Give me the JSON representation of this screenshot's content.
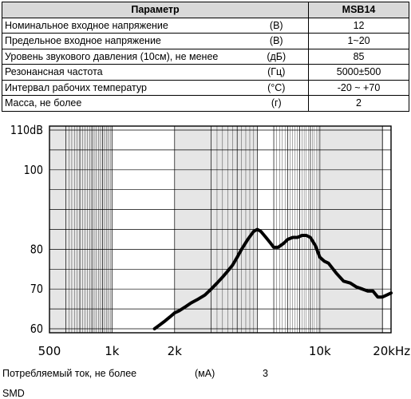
{
  "table": {
    "header_param": "Параметр",
    "header_model": "MSB14",
    "rows": [
      {
        "param": "Номинальное входное напряжение",
        "unit": "(В)",
        "value": "12"
      },
      {
        "param": "Предельное входное напряжение",
        "unit": "(В)",
        "value": "1~20"
      },
      {
        "param": "Уровень звукового давления (10см), не менее",
        "unit": "(дБ)",
        "value": "85"
      },
      {
        "param": "Резонансная частота",
        "unit": "(Гц)",
        "value": "5000±500"
      },
      {
        "param": "Интервал рабочих температур",
        "unit": "(°C)",
        "value": "-20 ~ +70"
      },
      {
        "param": "Масса, не более",
        "unit": "(г)",
        "value": "2"
      }
    ]
  },
  "chart_data": {
    "type": "line",
    "x_scale": "log",
    "xlim": [
      500,
      22000
    ],
    "ylim": [
      59,
      111
    ],
    "grid": true,
    "x_ticks": [
      {
        "label": "500",
        "value": 500
      },
      {
        "label": "1k",
        "value": 1000
      },
      {
        "label": "2k",
        "value": 2000
      },
      {
        "label": "10k",
        "value": 10000
      },
      {
        "label": "20kHz",
        "value": 20000
      }
    ],
    "y_ticks": [
      {
        "label": "110dB",
        "value": 110
      },
      {
        "label": "100",
        "value": 100
      },
      {
        "label": "80",
        "value": 80
      },
      {
        "label": "70",
        "value": 70
      },
      {
        "label": "60",
        "value": 60
      }
    ],
    "series": [
      {
        "x": [
          1600,
          1700,
          1800,
          1900,
          2000,
          2100,
          2250,
          2400,
          2600,
          2800,
          3000,
          3200,
          3400,
          3600,
          3800,
          4000,
          4200,
          4500,
          4800,
          5000,
          5200,
          5500,
          5800,
          6000,
          6300,
          6700,
          7000,
          7400,
          7800,
          8200,
          8600,
          9000,
          9500,
          10000,
          10500,
          11000,
          12000,
          13000,
          14000,
          15000,
          16000,
          17000,
          18000,
          19000,
          20000,
          21000,
          22000
        ],
        "y": [
          60,
          61,
          62,
          63,
          64,
          64.5,
          65.5,
          66.5,
          67.5,
          68.5,
          70,
          71.5,
          73,
          74.5,
          76,
          78,
          80,
          82.5,
          84.5,
          85,
          84.5,
          83,
          81.5,
          80.5,
          80.5,
          81.5,
          82.5,
          83,
          83,
          83.5,
          83.5,
          83,
          81,
          78,
          77,
          76.5,
          74,
          72,
          71.5,
          70.5,
          70,
          69.5,
          69.5,
          68,
          68,
          68.5,
          69
        ]
      }
    ]
  },
  "footer": {
    "current_label": "Потребляемый ток, не более",
    "current_unit": "(мА)",
    "current_value": "3",
    "mount": "SMD"
  }
}
